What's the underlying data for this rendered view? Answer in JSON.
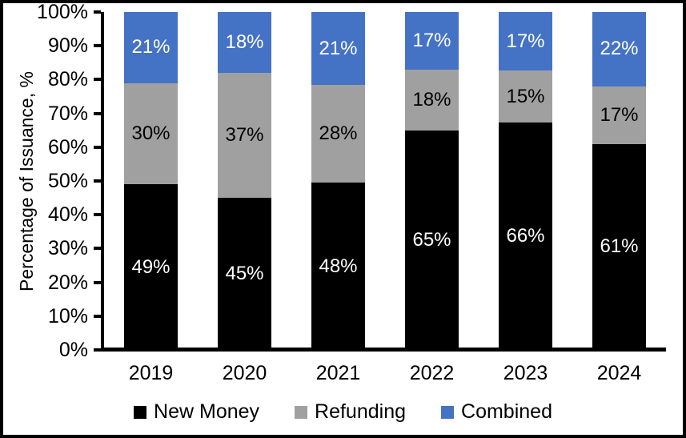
{
  "chart_data": {
    "type": "bar",
    "stacked": true,
    "normalized_to_100": true,
    "title": "",
    "xlabel": "",
    "ylabel": "Percentage of Issuance, %",
    "ylim": [
      0,
      100
    ],
    "ytick_step": 10,
    "ytick_labels": [
      "0%",
      "10%",
      "20%",
      "30%",
      "40%",
      "50%",
      "60%",
      "70%",
      "80%",
      "90%",
      "100%"
    ],
    "grid": false,
    "legend_position": "bottom",
    "categories": [
      "2019",
      "2020",
      "2021",
      "2022",
      "2023",
      "2024"
    ],
    "series": [
      {
        "name": "New Money",
        "color": "#000000",
        "label_color": "#ffffff",
        "values": [
          49,
          45,
          48,
          65,
          66,
          61
        ],
        "labels": [
          "49%",
          "45%",
          "48%",
          "65%",
          "66%",
          "61%"
        ]
      },
      {
        "name": "Refunding",
        "color": "#A0A0A0",
        "label_color": "#000000",
        "values": [
          30,
          37,
          28,
          18,
          15,
          17
        ],
        "labels": [
          "30%",
          "37%",
          "28%",
          "18%",
          "15%",
          "17%"
        ]
      },
      {
        "name": "Combined",
        "color": "#4472C4",
        "label_color": "#ffffff",
        "values": [
          21,
          18,
          21,
          17,
          17,
          22
        ],
        "labels": [
          "21%",
          "18%",
          "21%",
          "17%",
          "17%",
          "22%"
        ]
      }
    ],
    "axis_color": "#000000",
    "figure_border_color": "#000000",
    "background_color": "#ffffff"
  }
}
